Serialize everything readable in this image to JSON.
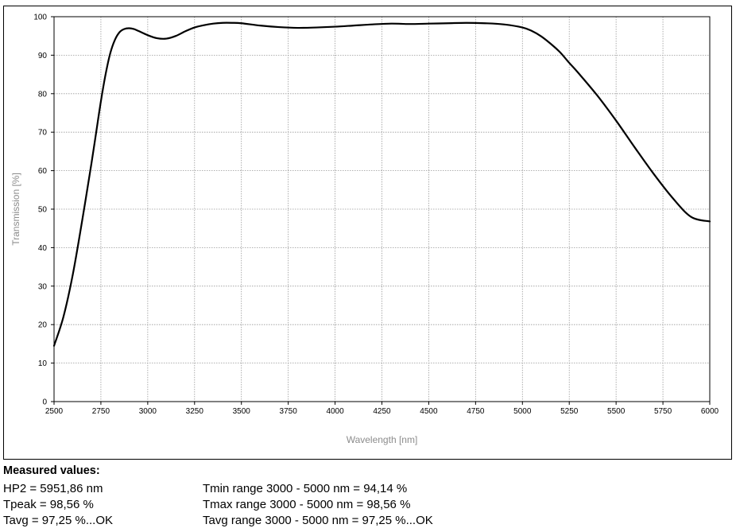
{
  "chart_data": {
    "type": "line",
    "title": "",
    "xlabel": "Wavelength [nm]",
    "ylabel": "Transmission [%]",
    "xlim": [
      2500,
      6000
    ],
    "ylim": [
      0,
      100
    ],
    "x_ticks": [
      2500,
      2750,
      3000,
      3250,
      3500,
      3750,
      4000,
      4250,
      4500,
      4750,
      5000,
      5250,
      5500,
      5750,
      6000
    ],
    "y_ticks": [
      0,
      10,
      20,
      30,
      40,
      50,
      60,
      70,
      80,
      90,
      100
    ],
    "grid": true,
    "series": [
      {
        "color": "#000000",
        "x": [
          2500,
          2550,
          2600,
          2650,
          2700,
          2725,
          2750,
          2775,
          2800,
          2825,
          2850,
          2875,
          2900,
          2925,
          2950,
          3000,
          3050,
          3100,
          3150,
          3200,
          3250,
          3300,
          3350,
          3400,
          3450,
          3500,
          3600,
          3700,
          3800,
          3900,
          4000,
          4100,
          4200,
          4300,
          4400,
          4500,
          4600,
          4700,
          4800,
          4900,
          5000,
          5050,
          5100,
          5150,
          5200,
          5250,
          5300,
          5400,
          5500,
          5600,
          5700,
          5800,
          5900,
          6000
        ],
        "y": [
          14.5,
          22,
          33,
          47,
          62,
          70,
          78,
          85,
          90.5,
          94,
          96,
          96.8,
          97.0,
          96.8,
          96.3,
          95.2,
          94.4,
          94.3,
          95.0,
          96.2,
          97.2,
          97.8,
          98.2,
          98.4,
          98.4,
          98.3,
          97.7,
          97.3,
          97.1,
          97.2,
          97.4,
          97.7,
          98.0,
          98.2,
          98.1,
          98.2,
          98.3,
          98.4,
          98.3,
          98.0,
          97.2,
          96.3,
          94.9,
          93.0,
          90.8,
          88.0,
          85.3,
          79.5,
          73.0,
          66.0,
          59.2,
          53.0,
          48.0,
          46.8
        ]
      }
    ]
  },
  "measured": {
    "heading": "Measured values:",
    "left": [
      "HP2 = 5951,86 nm",
      "Tpeak = 98,56 %",
      "Tavg = 97,25 %...OK"
    ],
    "right": [
      "Tmin range 3000 - 5000 nm = 94,14 %",
      "Tmax range 3000 - 5000 nm = 98,56 %",
      "Tavg range 3000 - 5000 nm = 97,25 %...OK"
    ]
  }
}
